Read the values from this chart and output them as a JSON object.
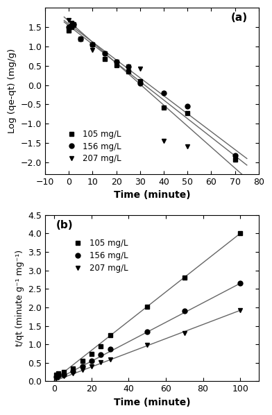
{
  "panel_a": {
    "title": "(a)",
    "xlabel": "Time (minute)",
    "ylabel": "Log (qe-qt) (mg/g)",
    "xlim": [
      -10,
      80
    ],
    "ylim": [
      -2.3,
      2.0
    ],
    "xticks": [
      -10,
      0,
      10,
      20,
      30,
      40,
      50,
      60,
      70,
      80
    ],
    "yticks": [
      -2.0,
      -1.5,
      -1.0,
      -0.5,
      0.0,
      0.5,
      1.0,
      1.5
    ],
    "series": [
      {
        "label": "105 mg/L",
        "marker": "s",
        "x_data": [
          0,
          1,
          2,
          5,
          10,
          15,
          20,
          25,
          30,
          40,
          50,
          70
        ],
        "y_data": [
          1.41,
          1.5,
          1.55,
          1.2,
          1.05,
          0.68,
          0.52,
          0.35,
          0.1,
          -0.58,
          -0.72,
          -1.93
        ],
        "fit_x": [
          -2,
          75
        ],
        "fit_y": [
          1.63,
          -2.07
        ]
      },
      {
        "label": "156 mg/L",
        "marker": "o",
        "x_data": [
          0,
          1,
          2,
          5,
          10,
          15,
          20,
          25,
          30,
          40,
          50,
          70
        ],
        "y_data": [
          1.5,
          1.55,
          1.57,
          1.2,
          1.05,
          0.82,
          0.6,
          0.47,
          0.05,
          -0.2,
          -0.55,
          -1.82
        ],
        "fit_x": [
          -2,
          75
        ],
        "fit_y": [
          1.67,
          -1.9
        ]
      },
      {
        "label": "207 mg/L",
        "marker": "v",
        "x_data": [
          0,
          1,
          2,
          5,
          10,
          15,
          20,
          25,
          30,
          40,
          50,
          70
        ],
        "y_data": [
          1.68,
          1.6,
          1.57,
          1.2,
          0.9,
          0.82,
          0.6,
          0.47,
          0.42,
          -1.45,
          -1.58,
          -1.85
        ],
        "fit_x": [
          -2,
          75
        ],
        "fit_y": [
          1.76,
          -2.42
        ]
      }
    ]
  },
  "panel_b": {
    "title": "(b)",
    "xlabel": "Time (minute)",
    "ylabel": "t/qt (minute g⁻¹ mg⁻¹)",
    "xlim": [
      -5,
      110
    ],
    "ylim": [
      0,
      4.5
    ],
    "xticks": [
      0,
      20,
      40,
      60,
      80,
      100
    ],
    "yticks": [
      0.0,
      0.5,
      1.0,
      1.5,
      2.0,
      2.5,
      3.0,
      3.5,
      4.0,
      4.5
    ],
    "series": [
      {
        "label": "105 mg/L",
        "marker": "s",
        "x_data": [
          1,
          2,
          5,
          10,
          15,
          20,
          25,
          30,
          50,
          70,
          100
        ],
        "y_data": [
          0.18,
          0.22,
          0.25,
          0.35,
          0.56,
          0.75,
          0.95,
          1.25,
          2.02,
          2.8,
          4.0
        ],
        "fit_x": [
          0,
          100
        ],
        "fit_y": [
          0.05,
          4.0
        ]
      },
      {
        "label": "156 mg/L",
        "marker": "o",
        "x_data": [
          1,
          2,
          5,
          10,
          15,
          20,
          25,
          30,
          50,
          70,
          100
        ],
        "y_data": [
          0.13,
          0.16,
          0.18,
          0.28,
          0.4,
          0.55,
          0.72,
          0.88,
          1.35,
          1.9,
          2.65
        ],
        "fit_x": [
          0,
          100
        ],
        "fit_y": [
          0.02,
          2.65
        ]
      },
      {
        "label": "207 mg/L",
        "marker": "v",
        "x_data": [
          1,
          2,
          5,
          10,
          15,
          20,
          25,
          30,
          50,
          70,
          100
        ],
        "y_data": [
          0.08,
          0.1,
          0.14,
          0.22,
          0.3,
          0.4,
          0.52,
          0.6,
          0.98,
          1.3,
          1.92
        ],
        "fit_x": [
          0,
          100
        ],
        "fit_y": [
          0.01,
          1.92
        ]
      }
    ]
  },
  "marker_size": 5,
  "line_color": "#666666",
  "marker_color": "black",
  "bg_color": "white"
}
